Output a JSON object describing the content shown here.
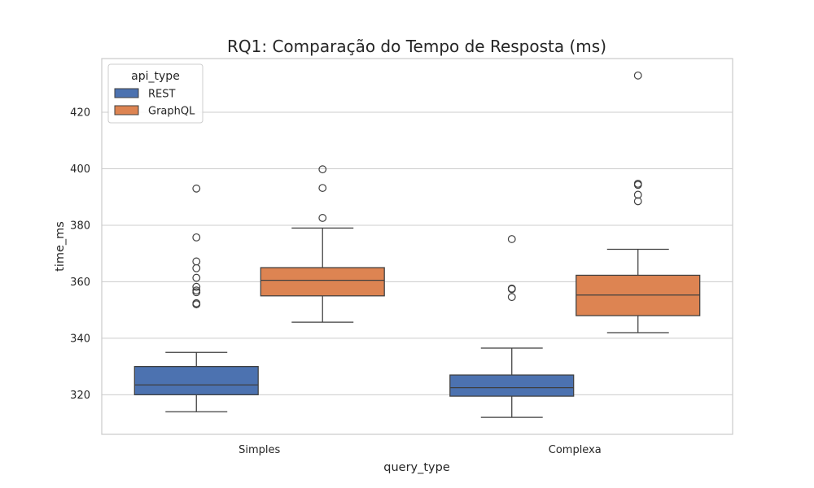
{
  "chart_data": {
    "type": "box",
    "title": "RQ1: Comparação do Tempo de Resposta (ms)",
    "xlabel": "query_type",
    "ylabel": "time_ms",
    "categories": [
      "Simples",
      "Complexa"
    ],
    "ylim": [
      306,
      439
    ],
    "yticks": [
      320,
      340,
      360,
      380,
      400,
      420
    ],
    "grid": true,
    "legend": {
      "title": "api_type",
      "placement": "top-left"
    },
    "series": [
      {
        "name": "REST",
        "color": "#4c72b0",
        "boxes": [
          {
            "whisker_low": 314,
            "q1": 320,
            "median": 323.5,
            "q3": 330,
            "whisker_high": 335,
            "outliers": [
              393,
              375.7,
              367.2,
              364.8,
              361.4,
              358.2,
              356.9,
              356.3,
              352.4,
              352
            ]
          },
          {
            "whisker_low": 312,
            "q1": 319.5,
            "median": 322.5,
            "q3": 327,
            "whisker_high": 336.5,
            "outliers": [
              375.1,
              357.6,
              357.4,
              354.6
            ]
          }
        ]
      },
      {
        "name": "GraphQL",
        "color": "#dd8452",
        "boxes": [
          {
            "whisker_low": 345.7,
            "q1": 355,
            "median": 360.5,
            "q3": 365,
            "whisker_high": 379,
            "outliers": [
              399.8,
              393.2,
              382.6
            ]
          },
          {
            "whisker_low": 342,
            "q1": 348,
            "median": 355.3,
            "q3": 362.3,
            "whisker_high": 371.5,
            "outliers": [
              433,
              394.7,
              394.3,
              390.8,
              388.5
            ]
          }
        ]
      }
    ]
  }
}
